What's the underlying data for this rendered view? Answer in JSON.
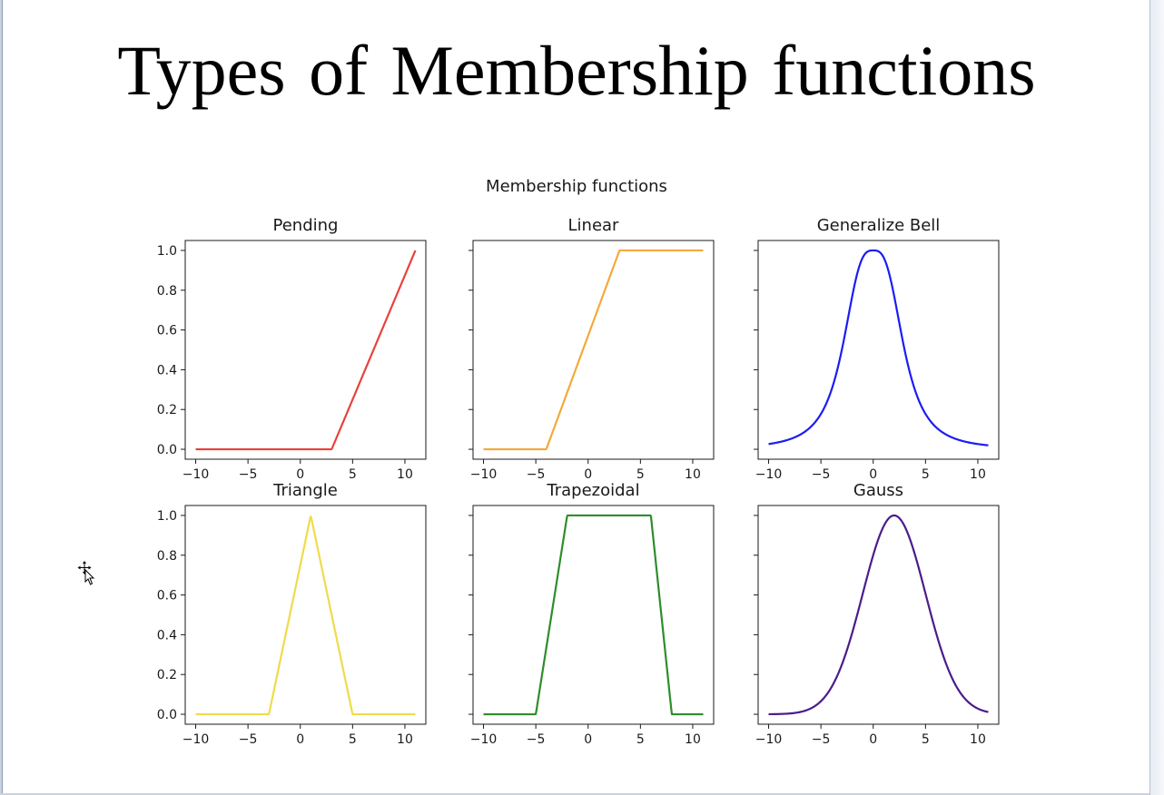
{
  "slide": {
    "title": "Types of Membership functions"
  },
  "chart_data": {
    "type": "line",
    "suptitle": "Membership functions",
    "xlim": [
      -11,
      12
    ],
    "ylim": [
      -0.05,
      1.05
    ],
    "xticks": [
      -10,
      -5,
      0,
      5,
      10
    ],
    "xtick_labels": [
      "−10",
      "−5",
      "0",
      "5",
      "10"
    ],
    "yticks": [
      0.0,
      0.2,
      0.4,
      0.6,
      0.8,
      1.0
    ],
    "ytick_labels": [
      "0.0",
      "0.2",
      "0.4",
      "0.6",
      "0.8",
      "1.0"
    ],
    "grid": false,
    "x_range": [
      -10,
      11
    ],
    "panels": [
      {
        "title": "Pending",
        "kind": "ramp",
        "params": [
          3,
          11
        ],
        "color": "#e8423c"
      },
      {
        "title": "Linear",
        "kind": "ramp_clip",
        "params": [
          -4,
          3
        ],
        "color": "#f5a93b"
      },
      {
        "title": "Generalize Bell",
        "kind": "gbell",
        "params": [
          3,
          1.5,
          0
        ],
        "color": "#1c1cf5"
      },
      {
        "title": "Triangle",
        "kind": "triangle",
        "params": [
          -3,
          1,
          5
        ],
        "color": "#f0db4a"
      },
      {
        "title": "Trapezoidal",
        "kind": "trapezoid",
        "params": [
          -5,
          -2,
          6,
          8
        ],
        "color": "#2f8c2c"
      },
      {
        "title": "Gauss",
        "kind": "gauss",
        "params": [
          2,
          3
        ],
        "color": "#4b1c8c"
      }
    ]
  },
  "icons": {
    "cursor": "move-cursor-icon"
  }
}
